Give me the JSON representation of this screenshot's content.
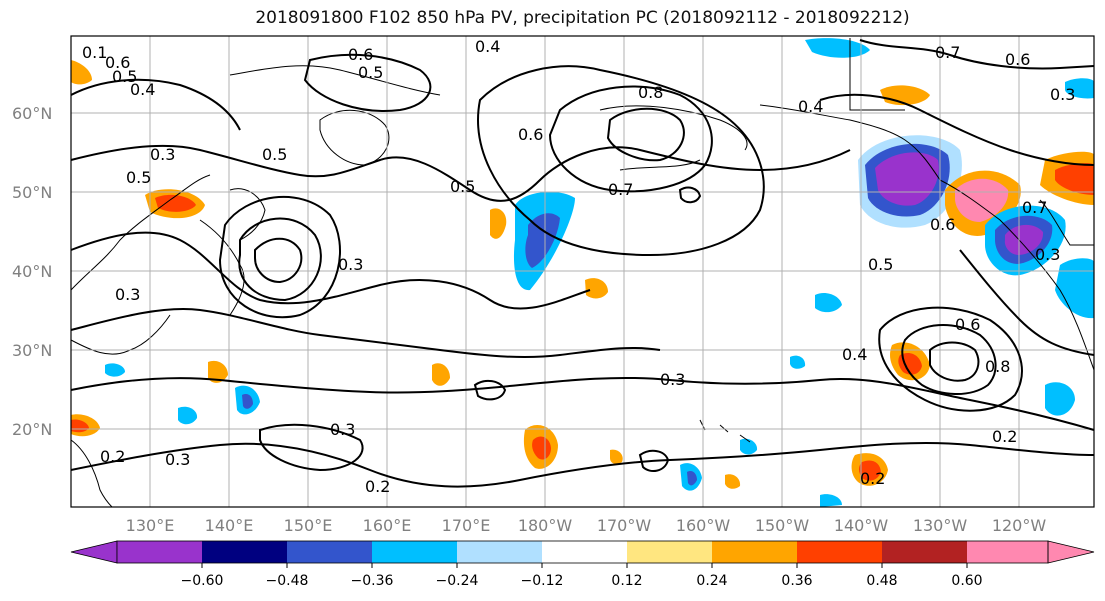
{
  "title": "2018091800 F102 850 hPa PV, precipitation PC (2018092112 - 2018092212)",
  "latitude_labels": [
    "60°N",
    "50°N",
    "40°N",
    "30°N",
    "20°N"
  ],
  "longitude_labels": [
    "130°E",
    "140°E",
    "150°E",
    "160°E",
    "170°E",
    "180°W",
    "170°W",
    "160°W",
    "150°W",
    "140°W",
    "130°W",
    "120°W"
  ],
  "contour_labels": [
    "0.1",
    "0.6",
    "0.5",
    "0.4",
    "0.6",
    "0.5",
    "0.4",
    "0.3",
    "0.8",
    "0.7",
    "0.6",
    "0.4",
    "0.5",
    "0.3",
    "0.6",
    "0.5",
    "0.3",
    "0.7",
    "0.5",
    "0.6",
    "0.3",
    "0.3",
    "0.4",
    "0.6",
    "0.8",
    "0.3",
    "0.3",
    "0.3",
    "0.2",
    "0.2",
    "0.2",
    "0.2",
    "0.5",
    "0.7"
  ],
  "colorbar": {
    "ticks": [
      "−0.60",
      "−0.48",
      "−0.36",
      "−0.24",
      "−0.12",
      "0.12",
      "0.24",
      "0.36",
      "0.48",
      "0.60"
    ],
    "colors": [
      "#9933cc",
      "#000080",
      "#3355cc",
      "#00bfff",
      "#b0e0ff",
      "#ffffff",
      "#ffe680",
      "#ffa500",
      "#ff4000",
      "#b22222",
      "#ff88b0"
    ]
  }
}
